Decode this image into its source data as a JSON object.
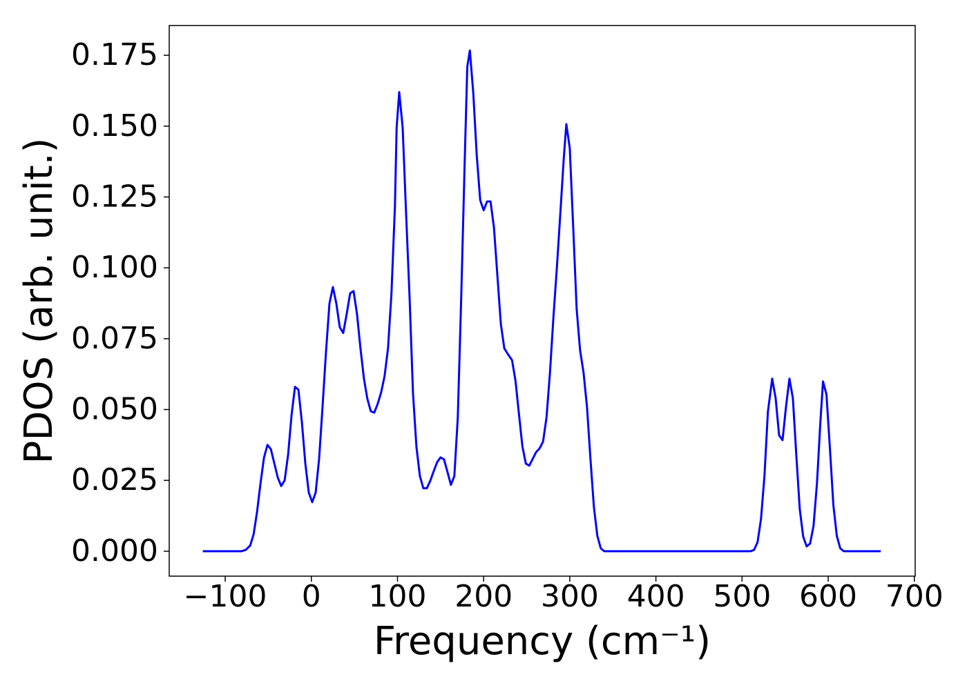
{
  "chart_data": {
    "type": "line",
    "xlabel": "Frequency (cm⁻¹)",
    "ylabel": "PDOS (arb. unit.)",
    "xlim": [
      -165,
      701
    ],
    "ylim": [
      -0.0088,
      0.1855
    ],
    "xticks": [
      {
        "value": -100,
        "label": "−100"
      },
      0,
      100,
      200,
      300,
      400,
      500,
      600,
      700
    ],
    "yticks": [
      {
        "value": 0,
        "label": "0.000"
      },
      {
        "value": 0.025,
        "label": "0.025"
      },
      {
        "value": 0.05,
        "label": "0.050"
      },
      {
        "value": 0.075,
        "label": "0.075"
      },
      {
        "value": 0.1,
        "label": "0.100"
      },
      {
        "value": 0.125,
        "label": "0.125"
      },
      {
        "value": 0.15,
        "label": "0.150"
      },
      {
        "value": 0.175,
        "label": "0.175"
      }
    ],
    "grid": false,
    "series": [
      {
        "color": "#0000ff",
        "x": [
          -126,
          -81,
          -76,
          -71,
          -67,
          -63,
          -59,
          -55,
          -51,
          -47,
          -43,
          -39,
          -35,
          -31,
          -27,
          -23,
          -19,
          -15,
          -11,
          -7,
          -3,
          1,
          5,
          9,
          13,
          17,
          21,
          25,
          29,
          33,
          37,
          41,
          45,
          49,
          53,
          57,
          61,
          65,
          69,
          73,
          77,
          81,
          85,
          89,
          93,
          97,
          99,
          102,
          106,
          110,
          114,
          118,
          122,
          126,
          130,
          134,
          138,
          142,
          146,
          150,
          154,
          158,
          162,
          166,
          170,
          174,
          178,
          181,
          184,
          188,
          192,
          196,
          200,
          204,
          208,
          212,
          216,
          220,
          224,
          228,
          233,
          237,
          241,
          245,
          249,
          253,
          257,
          261,
          265,
          269,
          273,
          277,
          281,
          285,
          289,
          293,
          296,
          300,
          304,
          308,
          312,
          316,
          320,
          324,
          328,
          332,
          336,
          340,
          510,
          514,
          518,
          522,
          526,
          530,
          535,
          539,
          543,
          547,
          551,
          555,
          559,
          563,
          567,
          571,
          575,
          579,
          583,
          587,
          591,
          594,
          598,
          602,
          606,
          610,
          614,
          618,
          661
        ],
        "values": [
          0,
          0,
          0.0005,
          0.002,
          0.006,
          0.014,
          0.024,
          0.033,
          0.0375,
          0.036,
          0.031,
          0.026,
          0.023,
          0.025,
          0.034,
          0.048,
          0.058,
          0.057,
          0.0455,
          0.031,
          0.0207,
          0.0173,
          0.0207,
          0.0326,
          0.051,
          0.0704,
          0.0874,
          0.0932,
          0.0874,
          0.079,
          0.077,
          0.0837,
          0.091,
          0.0918,
          0.0837,
          0.0716,
          0.061,
          0.0538,
          0.0494,
          0.0489,
          0.052,
          0.056,
          0.0618,
          0.0716,
          0.091,
          0.1215,
          0.1495,
          0.162,
          0.1495,
          0.119,
          0.0898,
          0.0557,
          0.0368,
          0.0265,
          0.0222,
          0.0222,
          0.0248,
          0.0282,
          0.0314,
          0.0331,
          0.0324,
          0.028,
          0.0234,
          0.0265,
          0.0472,
          0.0898,
          0.1373,
          0.1709,
          0.1767,
          0.1616,
          0.1397,
          0.1239,
          0.1203,
          0.1234,
          0.1234,
          0.1142,
          0.0971,
          0.0801,
          0.0716,
          0.0696,
          0.0674,
          0.0601,
          0.0484,
          0.037,
          0.0309,
          0.0302,
          0.0326,
          0.035,
          0.0363,
          0.0387,
          0.0472,
          0.063,
          0.0825,
          0.1,
          0.119,
          0.1385,
          0.1507,
          0.1422,
          0.1142,
          0.0854,
          0.0708,
          0.063,
          0.0509,
          0.0326,
          0.0156,
          0.0054,
          0.001,
          0,
          0,
          0.0005,
          0.0032,
          0.0114,
          0.0265,
          0.0492,
          0.0609,
          0.054,
          0.0409,
          0.0392,
          0.0509,
          0.0609,
          0.054,
          0.0338,
          0.0148,
          0.0051,
          0.0017,
          0.0027,
          0.009,
          0.0241,
          0.046,
          0.0599,
          0.0553,
          0.0363,
          0.0163,
          0.0054,
          0.001,
          0,
          0
        ]
      }
    ]
  }
}
